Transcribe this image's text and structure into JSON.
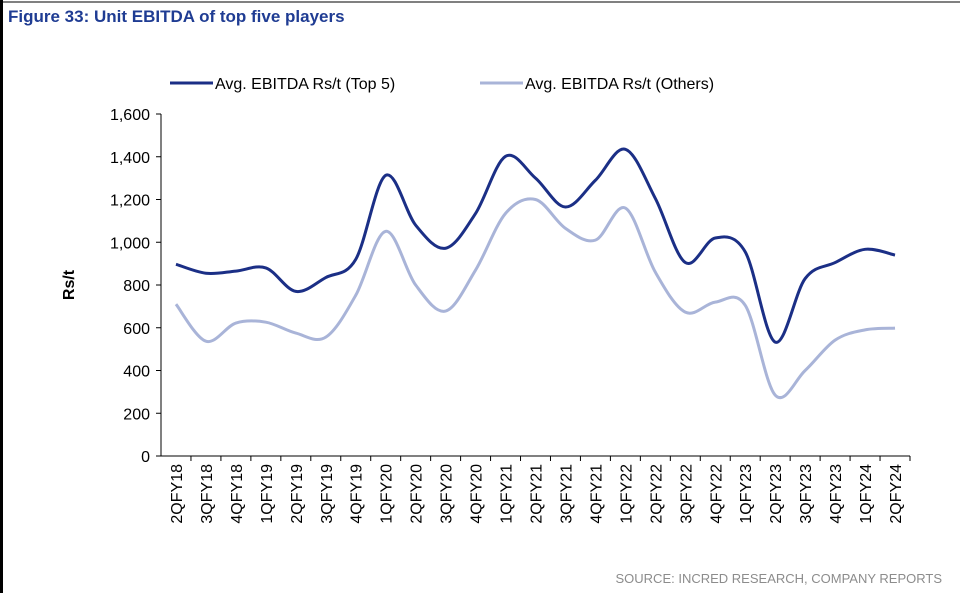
{
  "chart_data": {
    "type": "line",
    "title": "Figure 33: Unit EBITDA of top five players",
    "source": "SOURCE: INCRED RESEARCH, COMPANY REPORTS",
    "y_label": "Rs/t",
    "legend": "top",
    "smooth": true,
    "categories": [
      "2QFY18",
      "3QFY18",
      "4QFY18",
      "1QFY19",
      "2QFY19",
      "3QFY19",
      "4QFY19",
      "1QFY20",
      "2QFY20",
      "3QFY20",
      "4QFY20",
      "1QFY21",
      "2QFY21",
      "3QFY21",
      "4QFY21",
      "1QFY22",
      "2QFY22",
      "3QFY22",
      "4QFY22",
      "1QFY23",
      "2QFY23",
      "3QFY23",
      "4QFY23",
      "1QFY24",
      "2QFY24"
    ],
    "series": [
      {
        "name": "Avg. EBITDA Rs/t (Top 5)",
        "color": "#1b2f86",
        "values": [
          897,
          855,
          865,
          880,
          770,
          835,
          920,
          1313,
          1080,
          972,
          1135,
          1402,
          1300,
          1165,
          1290,
          1435,
          1205,
          905,
          1020,
          955,
          533,
          830,
          905,
          967,
          940
        ]
      },
      {
        "name": "Avg. EBITDA Rs/t (Others)",
        "color": "#a9b4d8",
        "values": [
          710,
          537,
          622,
          626,
          575,
          556,
          752,
          1051,
          800,
          678,
          870,
          1135,
          1200,
          1065,
          1010,
          1160,
          860,
          673,
          720,
          705,
          285,
          400,
          542,
          590,
          598
        ]
      }
    ],
    "ylim": [
      0,
      1600
    ],
    "yticks": [
      0,
      200,
      400,
      600,
      800,
      {
        "value": 1000,
        "label": "1,000"
      },
      {
        "value": 1200,
        "label": "1,200"
      },
      {
        "value": 1400,
        "label": "1,400"
      },
      {
        "value": 1600,
        "label": "1,600"
      }
    ]
  }
}
